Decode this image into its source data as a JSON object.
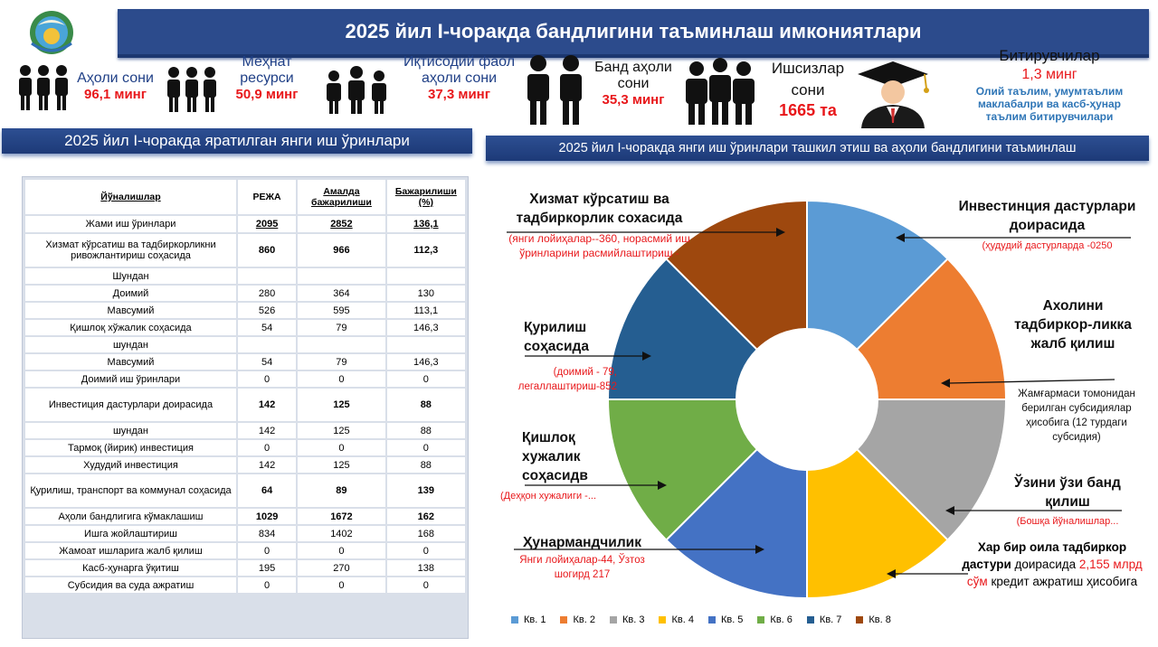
{
  "header": {
    "title": "2025 йил I-чоракда бандлигини таъминлаш имкониятлари"
  },
  "stats": [
    {
      "title": "Аҳоли сони",
      "value": "96,1 минг"
    },
    {
      "title": "Меҳнат ресурси",
      "value": "50,9 минг"
    },
    {
      "title": "Иқтисодий фаол аҳоли сони",
      "value": "37,3 минг"
    },
    {
      "title": "Банд аҳоли сони",
      "value": "35,3 минг"
    },
    {
      "title": "Ишсизлар сони",
      "value": "1665 та"
    },
    {
      "title": "Битирувчилар",
      "value": "1,3 минг",
      "note": "Олий таълим, умумтаълим маклабалри ва касб-ҳунар таълим битирувчилари"
    }
  ],
  "left_section": {
    "title": "2025 йил I-чоракда яратилган янги иш ўринлари"
  },
  "right_section": {
    "title": "2025 йил I-чоракда янги иш ўринлари ташкил этиш ва аҳоли бандлигини таъминлаш"
  },
  "table": {
    "headers": [
      "Йўналишлар",
      "РЕЖА",
      "Амалда бажарилиши",
      "Бажарилиши (%)"
    ],
    "rows": [
      [
        "Жами иш ўринлари",
        "2095",
        "2852",
        "136,1"
      ],
      [
        "Хизмат кўрсатиш ва тадбиркорликни ривожлантириш соҳасида",
        "860",
        "966",
        "112,3"
      ],
      [
        "Шундан",
        "",
        "",
        ""
      ],
      [
        "Доимий",
        "280",
        "364",
        "130"
      ],
      [
        "Мавсумий",
        "526",
        "595",
        "113,1"
      ],
      [
        "Қишлоқ хўжалик соҳасида",
        "54",
        "79",
        "146,3"
      ],
      [
        "шундан",
        "",
        "",
        ""
      ],
      [
        "Мавсумий",
        "54",
        "79",
        "146,3"
      ],
      [
        "Доимий иш ўринлари",
        "0",
        "0",
        "0"
      ],
      [
        "Инвестиция дастурлари доирасида",
        "142",
        "125",
        "88"
      ],
      [
        "шундан",
        "142",
        "125",
        "88"
      ],
      [
        "Тармоқ (йирик) инвестиция",
        "0",
        "0",
        "0"
      ],
      [
        "Худудий инвестиция",
        "142",
        "125",
        "88"
      ],
      [
        "Қурилиш, транспорт ва коммунал соҳасида",
        "64",
        "89",
        "139"
      ],
      [
        "Аҳоли бандлигига кўмаклашиш",
        "1029",
        "1672",
        "162"
      ],
      [
        "Ишга жойлаштириш",
        "834",
        "1402",
        "168"
      ],
      [
        "Жамоат ишларига жалб қилиш",
        "0",
        "0",
        "0"
      ],
      [
        "Касб-ҳунарга ўқитиш",
        "195",
        "270",
        "138"
      ],
      [
        "Субсидия ва суда ажратиш",
        "0",
        "0",
        "0"
      ]
    ]
  },
  "chart_data": {
    "type": "pie",
    "donut": true,
    "categories": [
      "Кв. 1",
      "Кв. 2",
      "Кв. 3",
      "Кв. 4",
      "Кв. 5",
      "Кв. 6",
      "Кв. 7",
      "Кв. 8"
    ],
    "values": [
      1,
      1,
      1,
      1,
      1,
      1,
      1,
      1
    ],
    "colors": [
      "#5b9bd5",
      "#ed7d31",
      "#a5a5a5",
      "#ffc000",
      "#4472c4",
      "#70ad47",
      "#255e91",
      "#9e480e"
    ],
    "legend": "bottom"
  },
  "annotations": {
    "invest": {
      "title": "Инвестинция дастурлари доирасида",
      "note": "(ҳудудий дастурларда -0250"
    },
    "tadbir": {
      "title": "Ахолини тадбиркор-ликка жалб қилиш",
      "note": "Жамғармаси томонидан берилган субсидиялар ҳисобига (12 турдаги субсидия)"
    },
    "self": {
      "title": "Ўзини ўзи банд қилиш",
      "note": "(Бошқа йўналишлар..."
    },
    "family": {
      "title_bold": "Хар бир оила тадбиркор дастури",
      "title_mid": " доирасида ",
      "amount": "2,155 млрд сўм",
      "tail": " кредит ажратиш ҳисобига"
    },
    "service": {
      "title": "Хизмат кўрсатиш ва тадбиркорлик сохасида",
      "note": "(янги лойиҳалар--360, норасмий иш ўринларини расмийлаштириш -"
    },
    "construct": {
      "title": "Қурилиш соҳасида",
      "note": "(доимий - 79, легаллаштириш-852"
    },
    "agri": {
      "title": "Қишлоқ хужалик соҳасидв",
      "note": "(Деҳқон хужалиги -..."
    },
    "craft": {
      "title": "Ҳунармандчилик",
      "note": "Янги лойиҳалар-44, Ўзтоз шогирд 217"
    }
  }
}
